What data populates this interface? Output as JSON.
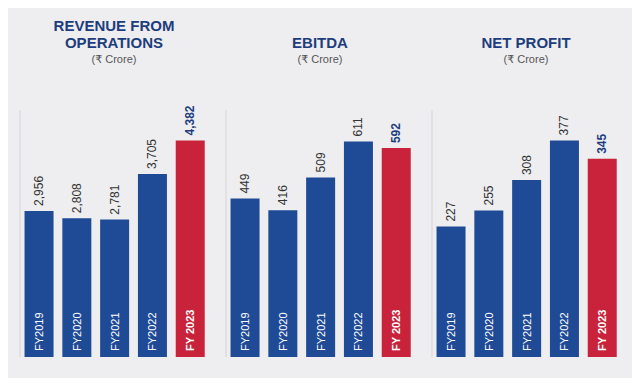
{
  "chart_data": [
    {
      "type": "bar",
      "title": "REVENUE FROM OPERATIONS",
      "subtitle": "(₹ Crore)",
      "categories": [
        "FY2019",
        "FY2020",
        "FY2021",
        "FY2022",
        "FY 2023"
      ],
      "values": [
        2956,
        2808,
        2781,
        3705,
        4382
      ],
      "value_labels": [
        "2,956",
        "2,808",
        "2,781",
        "3,705",
        "4,382"
      ],
      "colors": [
        "#1f4a96",
        "#1f4a96",
        "#1f4a96",
        "#1f4a96",
        "#c8233a"
      ],
      "ylim": [
        0,
        5000
      ],
      "data_labels": true,
      "tick_labels": false
    },
    {
      "type": "bar",
      "title": "EBITDA",
      "subtitle": "(₹ Crore)",
      "categories": [
        "FY2019",
        "FY2020",
        "FY2021",
        "FY2022",
        "FY 2023"
      ],
      "values": [
        449,
        416,
        509,
        611,
        592
      ],
      "colors": [
        "#1f4a96",
        "#1f4a96",
        "#1f4a96",
        "#1f4a96",
        "#c8233a"
      ],
      "ylim": [
        0,
        700
      ],
      "data_labels": true,
      "tick_labels": false
    },
    {
      "type": "bar",
      "title": "NET PROFIT",
      "subtitle": "(₹ Crore)",
      "categories": [
        "FY2019",
        "FY2020",
        "FY2021",
        "FY2022",
        "FY 2023"
      ],
      "values": [
        227,
        255,
        308,
        377,
        345
      ],
      "colors": [
        "#1f4a96",
        "#1f4a96",
        "#1f4a96",
        "#1f4a96",
        "#c8233a"
      ],
      "ylim": [
        0,
        430
      ],
      "data_labels": true,
      "tick_labels": false
    }
  ]
}
